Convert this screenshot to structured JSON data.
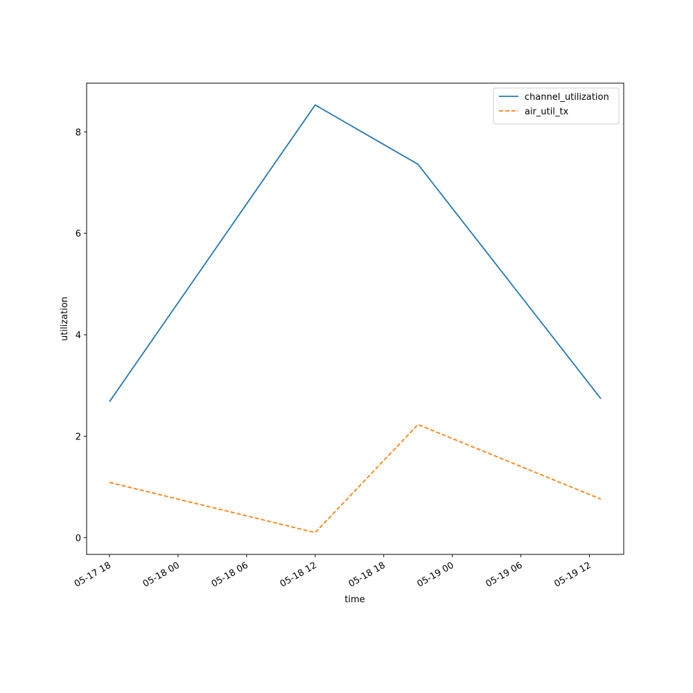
{
  "chart_data": {
    "type": "line",
    "x_label": "time",
    "y_label": "utilization",
    "x": [
      "05-17 18",
      "05-18 12",
      "05-18 21",
      "05-19 13"
    ],
    "series": [
      {
        "name": "channel_utilization",
        "color": "#1f77b4",
        "dash": "solid",
        "values": [
          2.68,
          8.53,
          7.36,
          2.74
        ]
      },
      {
        "name": "air_util_tx",
        "color": "#ff7f0e",
        "dash": "dashed",
        "values": [
          1.09,
          0.1,
          2.23,
          0.76
        ]
      }
    ],
    "xlim": [
      "05-17 16",
      "05-19 15"
    ],
    "xticks": [
      "05-17 18",
      "05-18 00",
      "05-18 06",
      "05-18 12",
      "05-18 18",
      "05-19 00",
      "05-19 06",
      "05-19 12"
    ],
    "ylim": [
      -0.33,
      8.96
    ],
    "yticks": [
      0,
      2,
      4,
      6,
      8
    ],
    "legend": "upper right",
    "grid": false
  }
}
